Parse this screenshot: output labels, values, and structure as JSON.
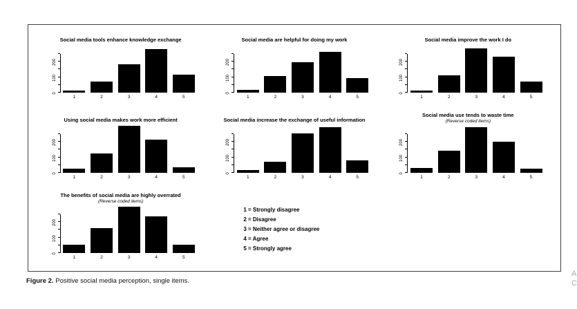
{
  "figure": {
    "border_color": "#3f3f3f",
    "background": "#ffffff",
    "bar_color": "#000000"
  },
  "caption": {
    "label": "Figure 2.",
    "text": " Positive social media perception, single items."
  },
  "legend": {
    "lines": [
      "1 = Strongly disagree",
      "2 = Disagree",
      "3 = Neither agree or disagree",
      "4 = Agree",
      "5 = Strongly agree"
    ]
  },
  "edge_fragments": [
    "A",
    "C"
  ],
  "chart_data": [
    {
      "type": "bar",
      "title": "Social media tools enhance knowledge exchange",
      "subtitle": "",
      "categories": [
        "1",
        "2",
        "3",
        "4",
        "5"
      ],
      "values": [
        15,
        70,
        185,
        280,
        115
      ],
      "yticks": [
        0,
        50,
        100,
        150,
        200,
        250
      ],
      "ylabels": [
        {
          "v": 0,
          "t": "0"
        },
        {
          "v": 100,
          "t": "100"
        },
        {
          "v": 200,
          "t": "200"
        }
      ],
      "ylim": [
        0,
        310
      ],
      "grid": false,
      "legend_position": "none",
      "bar_color": "#000000"
    },
    {
      "type": "bar",
      "title": "Social media are helpful for doing my work",
      "subtitle": "",
      "categories": [
        "1",
        "2",
        "3",
        "4",
        "5"
      ],
      "values": [
        20,
        105,
        195,
        265,
        95
      ],
      "yticks": [
        0,
        50,
        100,
        150,
        200,
        250
      ],
      "ylabels": [
        {
          "v": 0,
          "t": "0"
        },
        {
          "v": 100,
          "t": "100"
        },
        {
          "v": 200,
          "t": "200"
        }
      ],
      "ylim": [
        0,
        310
      ],
      "grid": false,
      "legend_position": "none",
      "bar_color": "#000000"
    },
    {
      "type": "bar",
      "title": "Social media improve the work I do",
      "subtitle": "",
      "categories": [
        "1",
        "2",
        "3",
        "4",
        "5"
      ],
      "values": [
        12,
        110,
        285,
        230,
        70
      ],
      "yticks": [
        0,
        50,
        100,
        150,
        200,
        250
      ],
      "ylabels": [
        {
          "v": 0,
          "t": "0"
        },
        {
          "v": 100,
          "t": "100"
        },
        {
          "v": 200,
          "t": "200"
        }
      ],
      "ylim": [
        0,
        310
      ],
      "grid": false,
      "legend_position": "none",
      "bar_color": "#000000"
    },
    {
      "type": "bar",
      "title": "Using social media makes work more efficient",
      "subtitle": "",
      "categories": [
        "1",
        "2",
        "3",
        "4",
        "5"
      ],
      "values": [
        25,
        125,
        305,
        215,
        38
      ],
      "yticks": [
        0,
        50,
        100,
        150,
        200,
        250
      ],
      "ylabels": [
        {
          "v": 0,
          "t": "0"
        },
        {
          "v": 100,
          "t": "100"
        },
        {
          "v": 200,
          "t": "200"
        }
      ],
      "ylim": [
        0,
        310
      ],
      "grid": false,
      "legend_position": "none",
      "bar_color": "#000000"
    },
    {
      "type": "bar",
      "title": "Social media increase the exchange of useful information",
      "subtitle": "",
      "categories": [
        "1",
        "2",
        "3",
        "4",
        "5"
      ],
      "values": [
        20,
        70,
        255,
        295,
        80
      ],
      "yticks": [
        0,
        50,
        100,
        150,
        200,
        250
      ],
      "ylabels": [
        {
          "v": 0,
          "t": "0"
        },
        {
          "v": 100,
          "t": "100"
        },
        {
          "v": 200,
          "t": "200"
        }
      ],
      "ylim": [
        0,
        310
      ],
      "grid": false,
      "legend_position": "none",
      "bar_color": "#000000"
    },
    {
      "type": "bar",
      "title": "Social media use tends to waste time",
      "subtitle": "(Reverse coded items)",
      "categories": [
        "1",
        "2",
        "3",
        "4",
        "5"
      ],
      "values": [
        30,
        145,
        295,
        200,
        28
      ],
      "yticks": [
        0,
        50,
        100,
        150,
        200,
        250
      ],
      "ylabels": [
        {
          "v": 0,
          "t": "0"
        },
        {
          "v": 100,
          "t": "100"
        },
        {
          "v": 200,
          "t": "200"
        }
      ],
      "ylim": [
        0,
        310
      ],
      "grid": false,
      "legend_position": "none",
      "bar_color": "#000000"
    },
    {
      "type": "bar",
      "title": "The benefits of social media are highly overrated",
      "subtitle": "(Reverse coded items)",
      "categories": [
        "1",
        "2",
        "3",
        "4",
        "5"
      ],
      "values": [
        55,
        160,
        300,
        235,
        55
      ],
      "yticks": [
        0,
        50,
        100,
        150,
        200,
        250
      ],
      "ylabels": [
        {
          "v": 0,
          "t": "0"
        },
        {
          "v": 100,
          "t": "100"
        },
        {
          "v": 200,
          "t": "200"
        }
      ],
      "ylim": [
        0,
        310
      ],
      "grid": false,
      "legend_position": "none",
      "bar_color": "#000000"
    }
  ]
}
